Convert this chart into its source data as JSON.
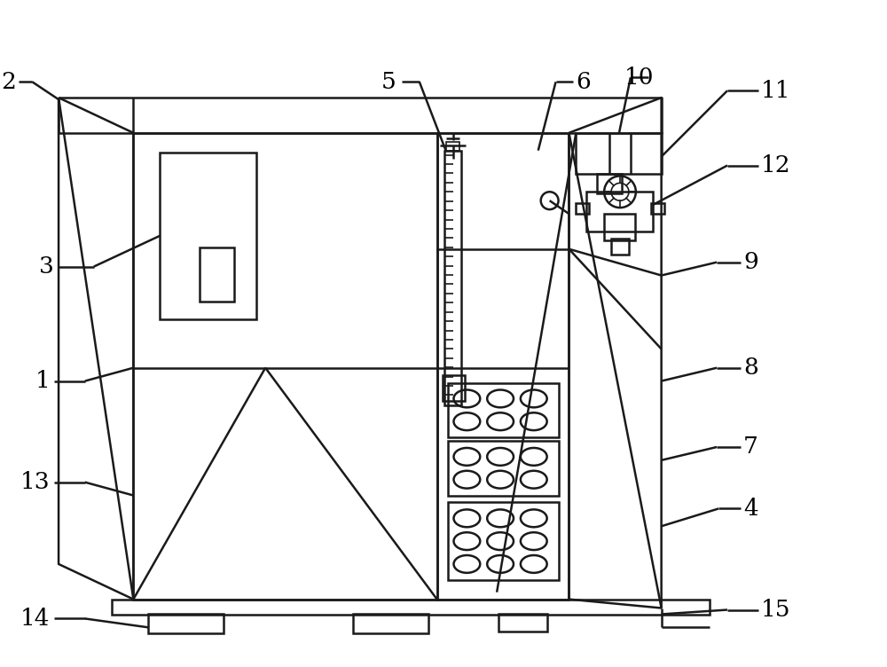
{
  "bg_color": "#ffffff",
  "line_color": "#1a1a1a",
  "lw": 1.8,
  "lw_thin": 1.2,
  "fig_width": 10.0,
  "fig_height": 7.52
}
